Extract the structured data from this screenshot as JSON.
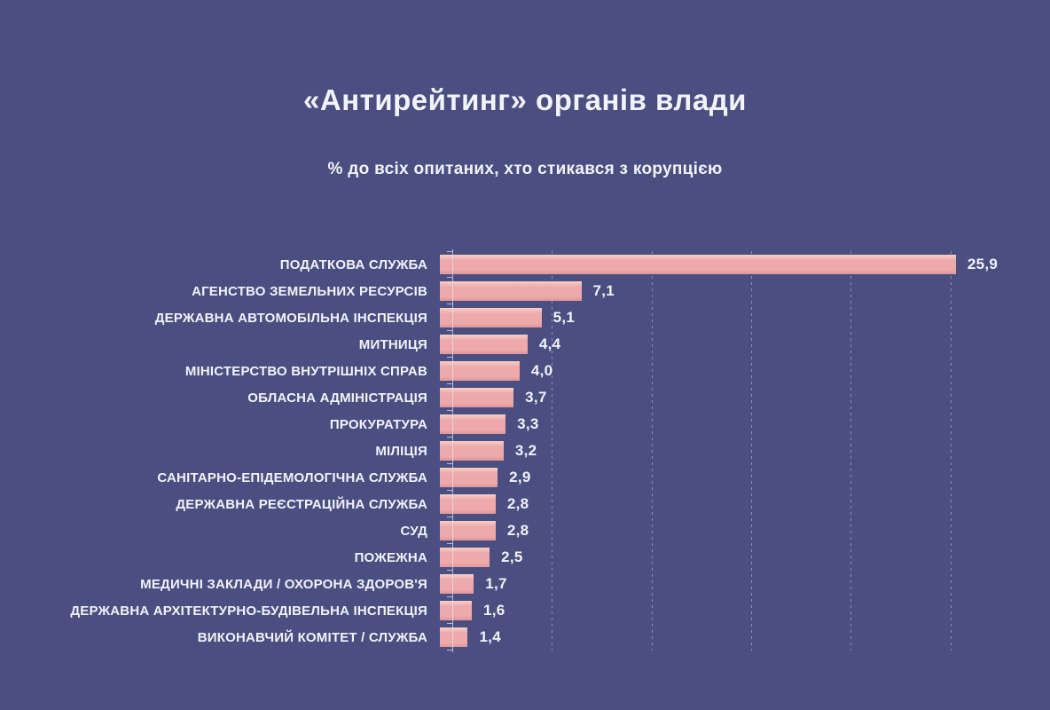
{
  "page": {
    "title": "«Антирейтинг» органів влади",
    "subtitle": "% до всіх опитаних, хто стикався з корупцією"
  },
  "colors": {
    "background": "#4a4e80",
    "bar": "#eeaaab",
    "bar_highlight": "#f8d0c6",
    "bar_shadow": "#dd969b",
    "text": "#f2f3f8",
    "gridline": "rgba(255,255,255,0.35)",
    "axis": "rgba(220,224,245,0.75)"
  },
  "chart_data": {
    "type": "bar",
    "orientation": "horizontal",
    "title": "«Антирейтинг» органів влади",
    "subtitle": "% до всіх опитаних, хто стикався з корупцією",
    "categories": [
      "ПОДАТКОВА СЛУЖБА",
      "АГЕНСТВО ЗЕМЕЛЬНИХ РЕСУРСІВ",
      "ДЕРЖАВНА АВТОМОБІЛЬНА ІНСПЕКЦІЯ",
      "МИТНИЦЯ",
      "МІНІСТЕРСТВО ВНУТРІШНІХ СПРАВ",
      "ОБЛАСНА АДМІНІСТРАЦІЯ",
      "ПРОКУРАТУРА",
      "МІЛІЦІЯ",
      "САНІТАРНО-ЕПІДЕМОЛОГІЧНА СЛУЖБА",
      "ДЕРЖАВНА РЕЄСТРАЦІЙНА СЛУЖБА",
      "СУД",
      "ПОЖЕЖНА",
      "МЕДИЧНІ ЗАКЛАДИ / ОХОРОНА ЗДОРОВ'Я",
      "ДЕРЖАВНА АРХІТЕКТУРНО-БУДІВЕЛЬНА ІНСПЕКЦІЯ",
      "ВИКОНАВЧИЙ КОМІТЕТ / СЛУЖБА"
    ],
    "values": [
      25.9,
      7.1,
      5.1,
      4.4,
      4.0,
      3.7,
      3.3,
      3.2,
      2.9,
      2.8,
      2.8,
      2.5,
      1.7,
      1.6,
      1.4
    ],
    "value_labels": [
      "25,9",
      "7,1",
      "5,1",
      "4,4",
      "4,0",
      "3,7",
      "3,3",
      "3,2",
      "2,9",
      "2,8",
      "2,8",
      "2,5",
      "1,7",
      "1,6",
      "1,4"
    ],
    "xlabel": "",
    "ylabel": "",
    "xlim": [
      0,
      30
    ],
    "gridline_interval": 5,
    "grid": true,
    "legend": false
  }
}
